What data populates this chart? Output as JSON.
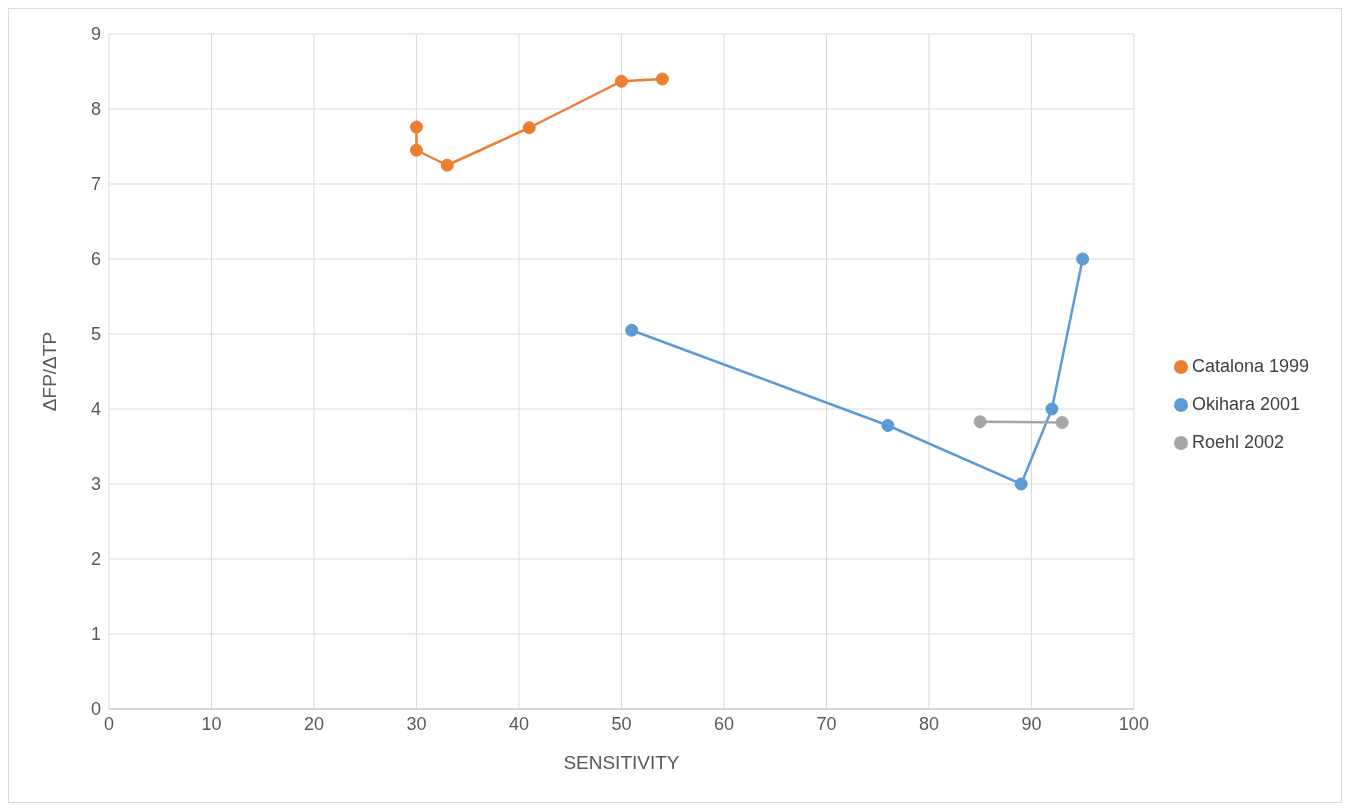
{
  "chart_data": {
    "type": "line",
    "xlabel": "SENSITIVITY",
    "ylabel": "ΔFP/ΔTP",
    "xlim": [
      0,
      100
    ],
    "xticks": [
      0,
      10,
      20,
      30,
      40,
      50,
      60,
      70,
      80,
      90,
      100
    ],
    "ylim": [
      0,
      9
    ],
    "yticks": [
      0,
      1,
      2,
      3,
      4,
      5,
      6,
      7,
      8,
      9
    ],
    "grid": true,
    "legend": "right",
    "marker": "circle",
    "line_style": "solid",
    "series": [
      {
        "name": "Okihara 2001",
        "color": "#5b9bd5",
        "x": [
          51,
          76,
          89,
          92,
          95
        ],
        "values": [
          5.05,
          3.78,
          3.0,
          4.0,
          6.0
        ]
      },
      {
        "name": "Catalona 1999",
        "color": "#ed7d31",
        "x": [
          30,
          30,
          33,
          41,
          50,
          54
        ],
        "values": [
          7.76,
          7.45,
          7.25,
          7.75,
          8.37,
          8.4
        ]
      },
      {
        "name": "Roehl 2002",
        "color": "#a5a5a5",
        "x": [
          85,
          93
        ],
        "values": [
          3.83,
          3.82
        ]
      }
    ]
  }
}
